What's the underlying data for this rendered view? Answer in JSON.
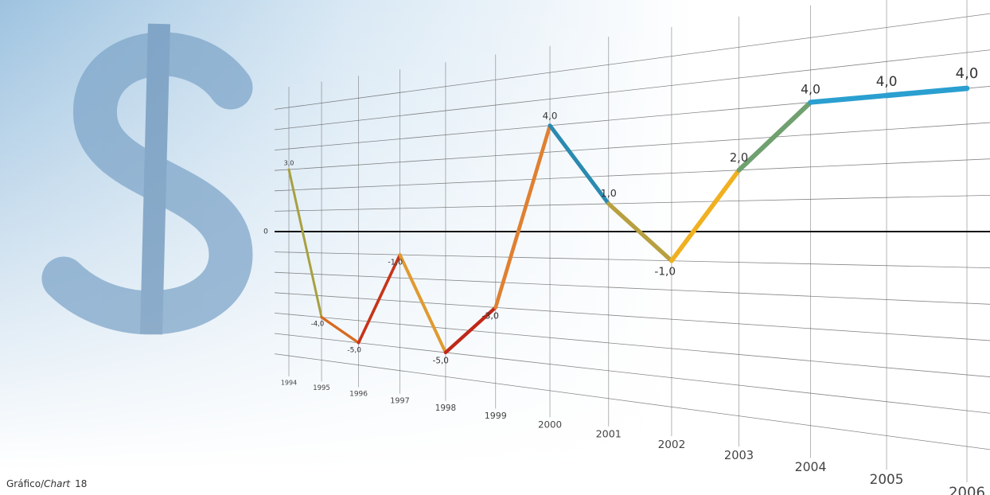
{
  "chart_data": {
    "type": "line",
    "categories": [
      "1994",
      "1995",
      "1996",
      "1997",
      "1998",
      "1999",
      "2000",
      "2001",
      "2002",
      "2003",
      "2004",
      "2005",
      "2006"
    ],
    "values": [
      3,
      -4,
      -5,
      -1,
      -5,
      -3,
      4,
      1,
      -1,
      2,
      4,
      4,
      4
    ],
    "value_labels": [
      "3,0",
      "-4,0",
      "-5,0",
      "-1,0",
      "-5,0",
      "-3,0",
      "4,0",
      "1,0",
      "-1,0",
      "2,0",
      "4,0",
      "4,0",
      "4,0"
    ],
    "point_colors": [
      "#a8a040",
      "#d86a20",
      "#c8341a",
      "#e09a30",
      "#c02818",
      "#e08030",
      "#2a8ab0",
      "#b8a040",
      "#f0b020",
      "#70a070",
      "#2a9fd0",
      "#2a9fd0",
      "#2a9fd0"
    ],
    "ylim": [
      -6,
      6
    ],
    "yticks": [
      0
    ],
    "grid": true
  },
  "caption": {
    "prefix": "Gráfico/",
    "italic": "Chart",
    "number": "18"
  }
}
